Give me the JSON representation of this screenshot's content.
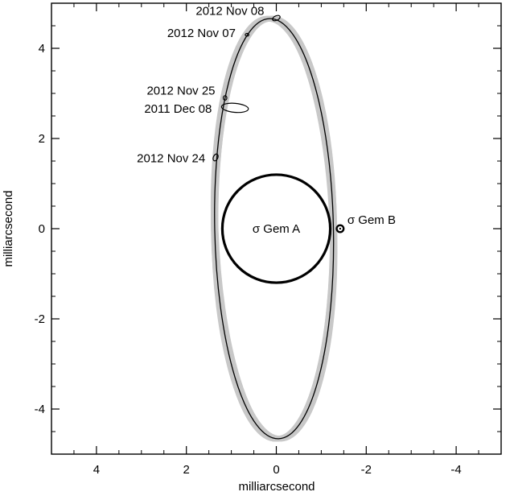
{
  "chart_data": {
    "type": "scatter",
    "title": "",
    "xlabel": "milliarcsecond",
    "ylabel": "milliarcsecond",
    "xlim": [
      5,
      -5
    ],
    "ylim": [
      -5,
      5
    ],
    "x_reversed": true,
    "grid": false,
    "xticks": [
      4,
      2,
      0,
      -2,
      -4
    ],
    "xtick_labels": [
      "4",
      "2",
      "0",
      "-2",
      "-4"
    ],
    "yticks": [
      4,
      2,
      0,
      -2,
      -4
    ],
    "ytick_labels": [
      "4",
      "2",
      "0",
      "-2",
      "-4"
    ],
    "orbit": {
      "center": [
        0.05,
        0.0
      ],
      "semi_axis_x": 1.32,
      "semi_axis_y": 4.66,
      "rotation_deg": 1.2,
      "best_fit_color": "#000000",
      "sample_orbits_color": "#c8c8c8"
    },
    "primary_star": {
      "label": "σ Gem A",
      "center": [
        0.0,
        0.0
      ],
      "radius": 1.2
    },
    "companion": {
      "label": "σ Gem B",
      "x": -1.42,
      "y": 0.0
    },
    "measurements": [
      {
        "label": "2012 Nov 08",
        "x": 0.0,
        "y": 4.67,
        "err_x": 0.09,
        "err_y": 0.05,
        "angle_deg": -25
      },
      {
        "label": "2012 Nov 07",
        "x": 0.65,
        "y": 4.3,
        "err_x": 0.04,
        "err_y": 0.03,
        "angle_deg": 0
      },
      {
        "label": "2012 Nov 25",
        "x": 1.14,
        "y": 2.9,
        "err_x": 0.04,
        "err_y": 0.05,
        "angle_deg": 0
      },
      {
        "label": "2011 Dec 08",
        "x": 0.92,
        "y": 2.68,
        "err_x": 0.3,
        "err_y": 0.1,
        "angle_deg": 5
      },
      {
        "label": "2012 Nov 24",
        "x": 1.35,
        "y": 1.58,
        "err_x": 0.05,
        "err_y": 0.08,
        "angle_deg": 25
      }
    ]
  }
}
